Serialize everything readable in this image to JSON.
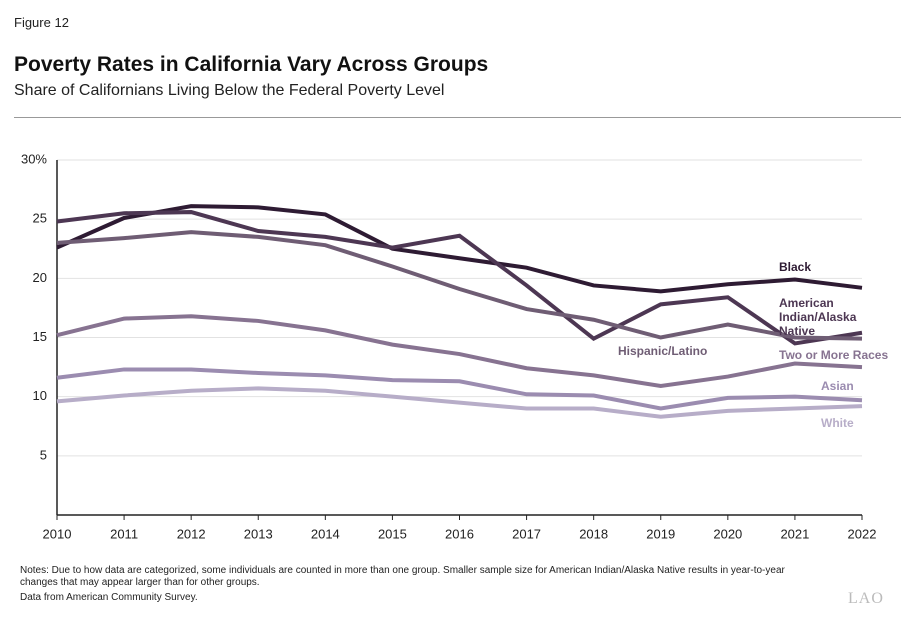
{
  "figure_label": "Figure 12",
  "chart_data": {
    "type": "line",
    "title": "Poverty Rates in California Vary Across Groups",
    "subtitle": "Share of Californians Living Below the Federal Poverty Level",
    "x": [
      2010,
      2011,
      2012,
      2013,
      2014,
      2015,
      2016,
      2017,
      2018,
      2019,
      2020,
      2021,
      2022
    ],
    "xlim": [
      2010,
      2022
    ],
    "xticks": [
      2010,
      2011,
      2012,
      2013,
      2014,
      2015,
      2016,
      2017,
      2018,
      2019,
      2020,
      2021,
      2022
    ],
    "ylim": [
      0,
      30
    ],
    "yticks": [
      5,
      10,
      15,
      20,
      25,
      {
        "value": 30,
        "label": "30%"
      }
    ],
    "grid": true,
    "series": [
      {
        "name": "Black",
        "color": "#2e1b33",
        "values": [
          22.6,
          25.1,
          26.1,
          26.0,
          25.4,
          22.5,
          21.7,
          20.9,
          19.4,
          18.9,
          19.5,
          19.9,
          19.2
        ]
      },
      {
        "name": "American Indian/Alaska Native",
        "color": "#4d3753",
        "values": [
          24.8,
          25.5,
          25.6,
          24.0,
          23.5,
          22.6,
          23.6,
          19.4,
          14.9,
          17.8,
          18.4,
          14.5,
          15.4
        ]
      },
      {
        "name": "Hispanic/Latino",
        "color": "#6f5d74",
        "values": [
          23.0,
          23.4,
          23.9,
          23.5,
          22.8,
          21.0,
          19.1,
          17.4,
          16.5,
          15.0,
          16.1,
          15.0,
          14.9
        ]
      },
      {
        "name": "Two or More Races",
        "color": "#877391",
        "values": [
          15.2,
          16.6,
          16.8,
          16.4,
          15.6,
          14.4,
          13.6,
          12.4,
          11.8,
          10.9,
          11.7,
          12.8,
          12.5
        ]
      },
      {
        "name": "Asian",
        "color": "#9b8cb0",
        "values": [
          11.6,
          12.3,
          12.3,
          12.0,
          11.8,
          11.4,
          11.3,
          10.2,
          10.1,
          9.0,
          9.9,
          10.0,
          9.7
        ]
      },
      {
        "name": "White",
        "color": "#b7adc8",
        "values": [
          9.6,
          10.1,
          10.5,
          10.7,
          10.5,
          10.0,
          9.5,
          9.0,
          9.0,
          8.3,
          8.8,
          9.0,
          9.2
        ]
      }
    ]
  },
  "notes": "Notes: Due to how data are categorized, some individuals are counted in more than one group. Smaller sample size for American Indian/Alaska Native results in year-to-year changes that may appear larger than for other groups.",
  "source": "Data from American Community Survey.",
  "logo": "LAO"
}
